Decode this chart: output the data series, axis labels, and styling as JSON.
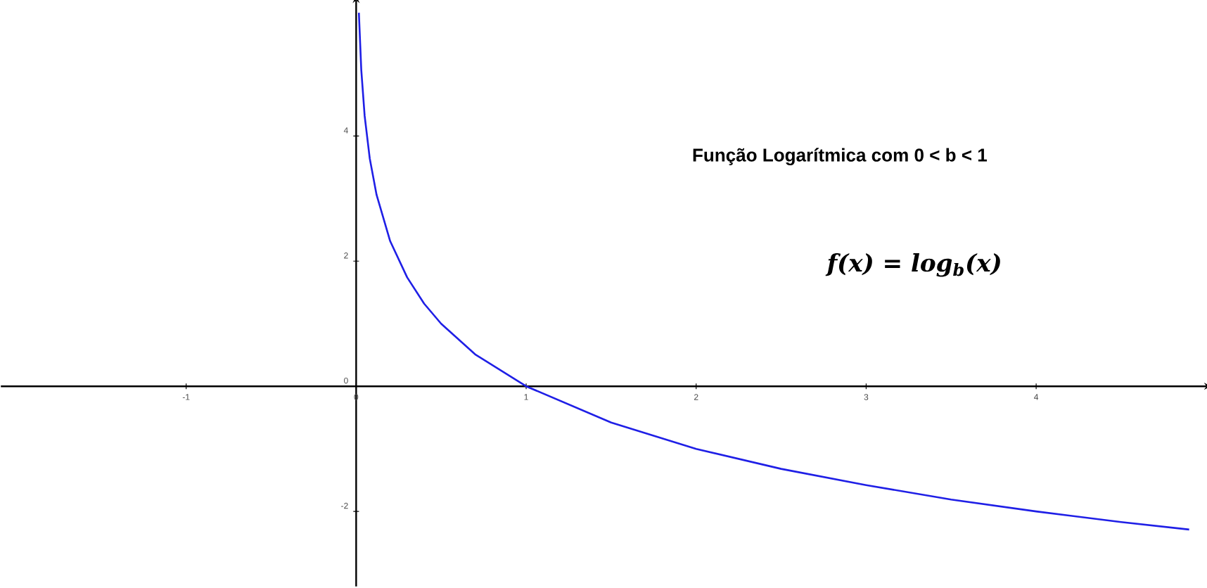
{
  "chart_data": {
    "type": "line",
    "x": [
      0.016,
      0.03,
      0.05,
      0.08,
      0.12,
      0.2,
      0.3,
      0.4,
      0.5,
      0.7,
      1,
      1.5,
      2,
      2.5,
      3,
      3.5,
      4,
      4.5,
      4.9
    ],
    "series": [
      {
        "color": "#1f1fe6",
        "values": [
          5.97,
          5.06,
          4.32,
          3.64,
          3.06,
          2.32,
          1.74,
          1.32,
          1.0,
          0.51,
          0.0,
          -0.58,
          -1.0,
          -1.32,
          -1.58,
          -1.81,
          -2.0,
          -2.17,
          -2.29
        ]
      }
    ],
    "xlim": [
      -2.09,
      5.0
    ],
    "ylim": [
      -3.2,
      6.16
    ],
    "xticks": [
      -1,
      0,
      1,
      2,
      3,
      4
    ],
    "yticks": [
      -2,
      0,
      2,
      4
    ],
    "annotations": [
      "Função Logarítmica com 0 < b < 1",
      "f(x) = log$_{b}$(x)"
    ]
  }
}
